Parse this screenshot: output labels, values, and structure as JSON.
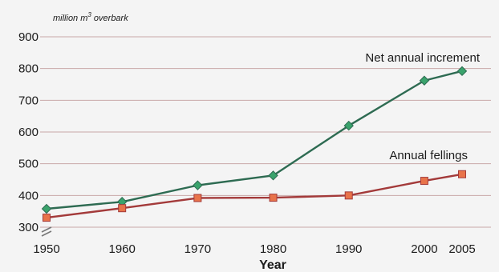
{
  "chart_data": {
    "type": "line",
    "title": "",
    "ylabel": "million m³ overbark",
    "ylabel_parts": {
      "pre": "million m",
      "sup": "3",
      "post": " overbark"
    },
    "xlabel": "Year",
    "x": [
      1950,
      1960,
      1970,
      1980,
      1990,
      2000,
      2005
    ],
    "x_ticks": [
      "1950",
      "1960",
      "1970",
      "1980",
      "1990",
      "2000",
      "2005"
    ],
    "y_ticks": [
      "300",
      "400",
      "500",
      "600",
      "700",
      "800",
      "900"
    ],
    "ylim": [
      300,
      900
    ],
    "xlim": [
      1950,
      2005
    ],
    "y_axis_break": true,
    "grid": true,
    "legend": "inline-labels",
    "series": [
      {
        "name": "Net annual increment",
        "values": [
          358,
          380,
          432,
          463,
          620,
          762,
          792
        ],
        "color": "#2e6b52",
        "marker": "diamond",
        "marker_color": "#3aa36c"
      },
      {
        "name": "Annual fellings",
        "values": [
          330,
          360,
          392,
          393,
          400,
          446,
          467
        ],
        "color": "#a33a3a",
        "marker": "square",
        "marker_color": "#e8734a"
      }
    ]
  }
}
